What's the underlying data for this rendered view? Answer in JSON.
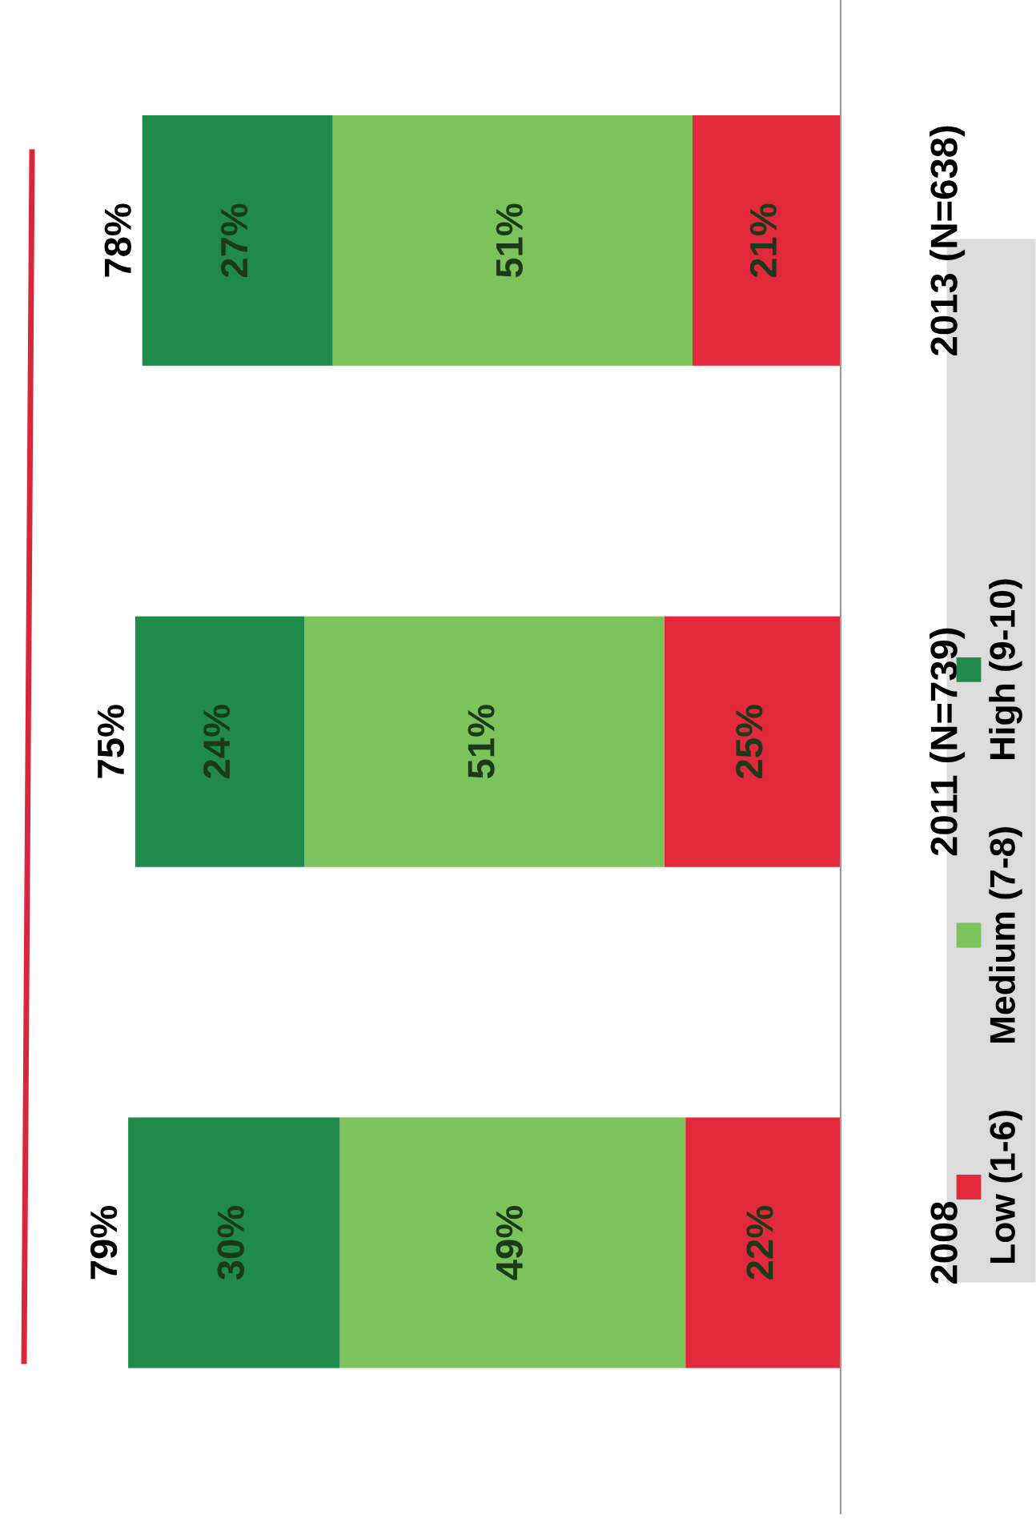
{
  "chart_data": {
    "type": "bar",
    "orientation": "horizontal",
    "stacked": true,
    "categories": [
      "2013 (N=638)",
      "2011 (N=739)",
      "2008"
    ],
    "series": [
      {
        "name": "Low (1-6)",
        "color": "#e2293c",
        "values": [
          21,
          25,
          22
        ],
        "value_labels": [
          "21%",
          "25%",
          "22%"
        ]
      },
      {
        "name": "Medium (7-8)",
        "color": "#7dc35b",
        "values": [
          51,
          51,
          49
        ],
        "value_labels": [
          "51%",
          "51%",
          "49%"
        ]
      },
      {
        "name": "High (9-10)",
        "color": "#1f8a4c",
        "values": [
          27,
          24,
          30
        ],
        "value_labels": [
          "27%",
          "24%",
          "30%"
        ]
      }
    ],
    "annotations": [
      "78%",
      "75%",
      "79%"
    ],
    "tick_labels": "y",
    "grid": false,
    "legend": "right"
  }
}
